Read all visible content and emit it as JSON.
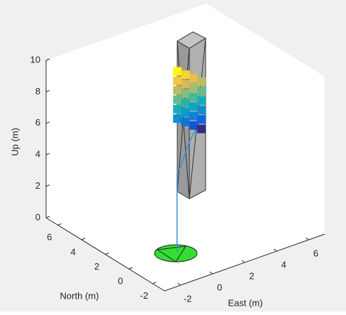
{
  "chart_data": {
    "type": "line3d",
    "xlabel": "East (m)",
    "ylabel": "North (m)",
    "zlabel": "Up (m)",
    "xlim": [
      -3,
      7
    ],
    "ylim": [
      -3,
      7
    ],
    "zlim": [
      0,
      10
    ],
    "xticks": [
      -2,
      0,
      2,
      4,
      6
    ],
    "yticks": [
      -2,
      0,
      2,
      4,
      6
    ],
    "zticks": [
      0,
      2,
      4,
      6,
      8,
      10
    ],
    "grid": false,
    "series": [
      {
        "color": "#3a8fd6",
        "x": [
          0,
          0,
          0.2,
          1,
          2
        ],
        "y": [
          0,
          0,
          0,
          0.3,
          0.5
        ],
        "z": [
          0,
          5,
          5.3,
          6.5,
          7.8
        ]
      },
      {
        "colormap": "parula",
        "x": [
          1.5,
          1.5,
          1.5,
          1.5,
          1.5,
          1.5,
          2,
          2,
          2,
          2,
          2,
          2,
          2.5,
          2.5,
          2.5,
          2.5,
          2.5,
          2.5,
          3,
          3,
          3,
          3,
          3,
          3
        ],
        "y": [
          2,
          2,
          2,
          2,
          2,
          2,
          2,
          2,
          2,
          2,
          2,
          2,
          2,
          2,
          2,
          2,
          2,
          2,
          2,
          2,
          2,
          2,
          2,
          2
        ],
        "z": [
          10,
          9.4,
          8.8,
          8.2,
          7.6,
          7,
          9.6,
          9,
          8.4,
          7.8,
          7.2,
          6.6,
          9.2,
          8.6,
          8,
          7.4,
          6.8,
          6.2,
          8.8,
          8.2,
          7.6,
          7,
          6.4,
          5.8
        ]
      }
    ]
  }
}
